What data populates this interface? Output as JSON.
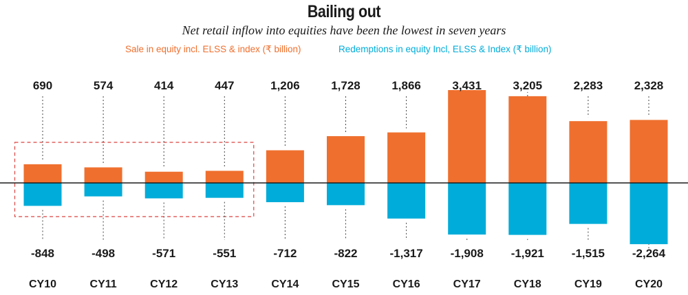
{
  "title": "Bailing out",
  "subtitle": "Net retail inflow into equities have been the lowest in seven years",
  "colors": {
    "sale": "#ef6f2e",
    "redemption": "#00acd9",
    "highlight": "#d9423f"
  },
  "chart_data": {
    "type": "bar",
    "categories": [
      "CY10",
      "CY11",
      "CY12",
      "CY13",
      "CY14",
      "CY15",
      "CY16",
      "CY17",
      "CY18",
      "CY19",
      "CY20"
    ],
    "series": [
      {
        "name": "Sale in equity incl. ELSS & index (₹ billion)",
        "values": [
          690,
          574,
          414,
          447,
          1206,
          1728,
          1866,
          3431,
          3205,
          2283,
          2328
        ],
        "labels": [
          "690",
          "574",
          "414",
          "447",
          "1,206",
          "1,728",
          "1,866",
          "3,431",
          "3,205",
          "2,283",
          "2,328"
        ]
      },
      {
        "name": "Redemptions in equity Incl, ELSS & Index (₹ billion)",
        "values": [
          -848,
          -498,
          -571,
          -551,
          -712,
          -822,
          -1317,
          -1908,
          -1921,
          -1515,
          -2264
        ],
        "labels": [
          "-848",
          "-498",
          "-571",
          "-551",
          "-712",
          "-822",
          "-1,317",
          "-1,908",
          "-1,921",
          "-1,515",
          "-2,264"
        ]
      }
    ],
    "title": "Bailing out",
    "xlabel": "",
    "ylabel": "",
    "ylim": [
      -2264,
      3431
    ],
    "grid": false,
    "legend": "top-center",
    "highlight_categories": [
      "CY10",
      "CY11",
      "CY12",
      "CY13"
    ]
  }
}
